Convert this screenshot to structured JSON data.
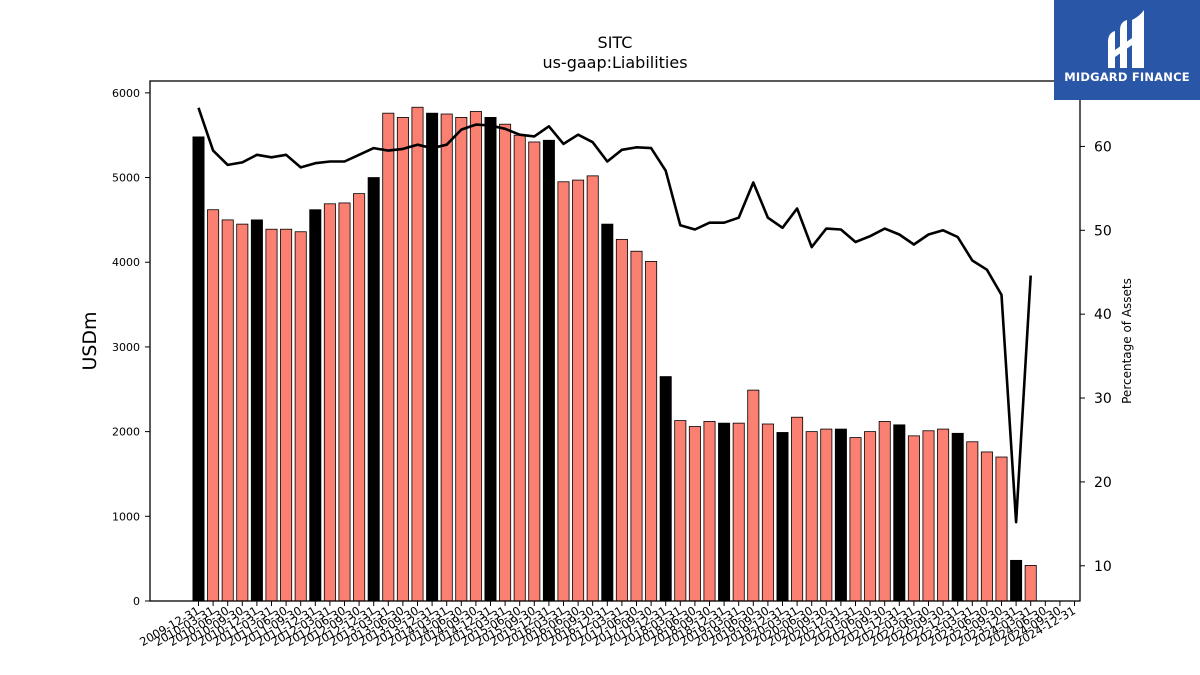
{
  "brand": {
    "name": "MIDGARD FINANCE",
    "bg_color": "#2a56a8",
    "icon": "midgard-logo-icon"
  },
  "chart_data": {
    "type": "bar",
    "title": "SITC",
    "subtitle": "us-gaap:Liabilities",
    "ylabel": "USDm",
    "y2label": "Percentage of Assets",
    "ylim": [
      0,
      6140
    ],
    "y2lim": [
      5.8,
      67.8
    ],
    "yticks": [
      0,
      1000,
      2000,
      3000,
      4000,
      5000,
      6000
    ],
    "y2ticks": [
      10,
      20,
      30,
      40,
      50,
      60
    ],
    "colors": {
      "annual": "#000000",
      "quarter": "#fa8072",
      "line": "#000000"
    },
    "categories": [
      "2009-12-31",
      "2010-03-31",
      "2010-06-30",
      "2010-09-30",
      "2010-12-31",
      "2011-03-31",
      "2011-06-30",
      "2011-09-30",
      "2011-12-31",
      "2012-03-31",
      "2012-06-30",
      "2012-09-30",
      "2012-12-31",
      "2013-03-31",
      "2013-06-30",
      "2013-09-30",
      "2013-12-31",
      "2014-03-31",
      "2014-06-30",
      "2014-09-30",
      "2014-12-31",
      "2015-03-31",
      "2015-06-30",
      "2015-09-30",
      "2015-12-31",
      "2016-03-31",
      "2016-06-30",
      "2016-09-30",
      "2016-12-31",
      "2017-03-31",
      "2017-06-30",
      "2017-09-30",
      "2017-12-31",
      "2018-03-31",
      "2018-06-30",
      "2018-09-30",
      "2018-12-31",
      "2019-03-31",
      "2019-06-30",
      "2019-09-30",
      "2019-12-31",
      "2020-03-31",
      "2020-06-30",
      "2020-09-30",
      "2020-12-31",
      "2021-03-31",
      "2021-06-30",
      "2021-09-30",
      "2021-12-31",
      "2022-03-31",
      "2022-06-30",
      "2022-09-30",
      "2022-12-31",
      "2023-03-31",
      "2023-06-30",
      "2023-09-30",
      "2023-12-31",
      "2024-03-31",
      "2024-06-30",
      "2024-09-30",
      "2024-12-31"
    ],
    "tick_labels": [
      "2009-12-31",
      "2010-03-31",
      "2010-06-30",
      "2010-09-30",
      "2010-12-31",
      "2011-03-31",
      "2011-06-30",
      "2011-09-30",
      "2011-12-31",
      "2012-03-31",
      "2012-06-30",
      "2012-09-30",
      "2012-12-31",
      "2013-03-31",
      "2013-06-30",
      "2013-09-30",
      "2013-12-31",
      "2014-03-31",
      "2014-06-30",
      "2014-09-30",
      "2014-12-31",
      "2015-03-31",
      "2015-06-30",
      "2015-09-30",
      "2015-12-31",
      "2016-03-31",
      "2016-06-30",
      "2016-09-30",
      "2016-12-31",
      "2017-03-31",
      "2017-06-30",
      "2017-09-30",
      "2017-12-31",
      "2018-03-31",
      "2018-06-30",
      "2018-09-30",
      "2018-12-31",
      "2019-03-31",
      "2019-06-30",
      "2019-09-30",
      "2019-12-31",
      "2020-03-31",
      "2020-06-30",
      "2020-09-30",
      "2020-12-31",
      "2021-03-31",
      "2021-06-30",
      "2021-09-30",
      "2021-12-31",
      "2022-03-31",
      "2022-06-30",
      "2022-09-30",
      "2022-12-31",
      "2023-03-31",
      "2023-06-30",
      "2023-09-30",
      "2023-12-31",
      "2024-03-31",
      "2024-06-30",
      "2024-09-30",
      "2024-12-31"
    ],
    "series": [
      {
        "type": "bar",
        "values": [
          5480,
          4620,
          4500,
          4450,
          4500,
          4390,
          4390,
          4360,
          4620,
          4690,
          4700,
          4810,
          5000,
          5760,
          5710,
          5830,
          5760,
          5750,
          5710,
          5780,
          5710,
          5630,
          5500,
          5420,
          5440,
          4950,
          4970,
          5020,
          4450,
          4270,
          4130,
          4010,
          2650,
          2130,
          2060,
          2120,
          2100,
          2100,
          2490,
          2090,
          1990,
          2170,
          2000,
          2030,
          2030,
          1930,
          2000,
          2120,
          2080,
          1950,
          2010,
          2030,
          1980,
          1880,
          1760,
          1700,
          480,
          420,
          null,
          null,
          null
        ]
      },
      {
        "type": "line",
        "axis": "right",
        "values": [
          64.6,
          59.5,
          57.8,
          58.1,
          59.0,
          58.7,
          59.0,
          57.5,
          58.0,
          58.2,
          58.2,
          59.0,
          59.8,
          59.5,
          59.7,
          60.2,
          59.8,
          60.2,
          62.0,
          62.6,
          62.5,
          62.1,
          61.4,
          61.2,
          62.4,
          60.3,
          61.4,
          60.5,
          58.2,
          59.6,
          59.9,
          59.8,
          57.1,
          50.6,
          50.1,
          50.9,
          50.9,
          51.5,
          55.7,
          51.5,
          50.3,
          52.6,
          48.0,
          50.2,
          50.1,
          48.6,
          49.3,
          50.2,
          49.5,
          48.3,
          49.5,
          50.0,
          49.2,
          46.4,
          45.3,
          42.3,
          15.2,
          44.6,
          null,
          null,
          null
        ]
      }
    ]
  }
}
